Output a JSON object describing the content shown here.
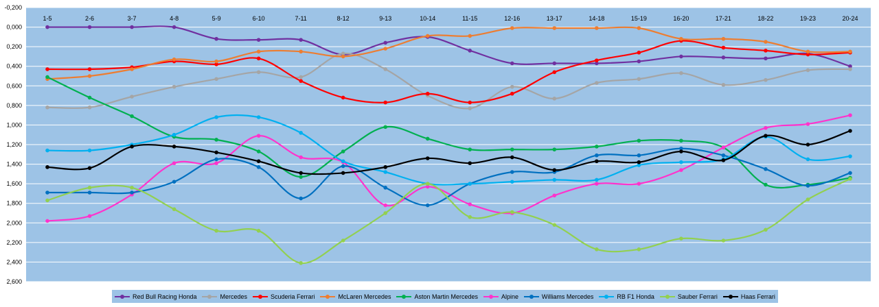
{
  "chart_data": {
    "type": "line",
    "title": "",
    "xlabel": "",
    "ylabel": "",
    "y_reversed": true,
    "ylim": [
      -0.2,
      2.6
    ],
    "y_ticks": [
      "-0,200",
      "0,000",
      "0,200",
      "0,400",
      "0,600",
      "0,800",
      "1,000",
      "1,200",
      "1,400",
      "1,600",
      "1,800",
      "2,000",
      "2,200",
      "2,400",
      "2,600"
    ],
    "x_position": "top",
    "grid": true,
    "legend_position": "bottom",
    "plot_background": "#9dc3e6",
    "categories": [
      "1-5",
      "2-6",
      "3-7",
      "4-8",
      "5-9",
      "6-10",
      "7-11",
      "8-12",
      "9-13",
      "10-14",
      "11-15",
      "12-16",
      "13-17",
      "14-18",
      "15-19",
      "16-20",
      "17-21",
      "18-22",
      "19-23",
      "20-24"
    ],
    "series": [
      {
        "name": "Red Bull Racing Honda",
        "color": "#7030a0",
        "values": [
          0.0,
          0.0,
          0.0,
          0.0,
          0.12,
          0.13,
          0.13,
          0.28,
          0.16,
          0.1,
          0.24,
          0.37,
          0.37,
          0.37,
          0.35,
          0.3,
          0.31,
          0.32,
          0.27,
          0.4
        ]
      },
      {
        "name": "Mercedes",
        "color": "#a5a5a5",
        "values": [
          0.82,
          0.82,
          0.71,
          0.61,
          0.53,
          0.46,
          0.51,
          0.27,
          0.43,
          0.7,
          0.83,
          0.61,
          0.73,
          0.57,
          0.53,
          0.47,
          0.59,
          0.54,
          0.44,
          0.43
        ]
      },
      {
        "name": "Scuderia Ferrari",
        "color": "#ff0000",
        "values": [
          0.43,
          0.43,
          0.41,
          0.35,
          0.38,
          0.32,
          0.55,
          0.72,
          0.77,
          0.68,
          0.77,
          0.68,
          0.46,
          0.34,
          0.26,
          0.14,
          0.21,
          0.24,
          0.28,
          0.26
        ]
      },
      {
        "name": "McLaren Mercedes",
        "color": "#ed7d31",
        "values": [
          0.53,
          0.5,
          0.43,
          0.33,
          0.35,
          0.25,
          0.25,
          0.3,
          0.22,
          0.09,
          0.09,
          0.01,
          0.01,
          0.01,
          0.01,
          0.12,
          0.12,
          0.15,
          0.25,
          0.25
        ]
      },
      {
        "name": "Aston Martin Mercedes",
        "color": "#00b050",
        "values": [
          0.51,
          0.72,
          0.91,
          1.12,
          1.15,
          1.27,
          1.53,
          1.27,
          1.02,
          1.14,
          1.25,
          1.25,
          1.25,
          1.22,
          1.16,
          1.16,
          1.23,
          1.61,
          1.61,
          1.54
        ]
      },
      {
        "name": "Alpine",
        "color": "#ff33cc",
        "values": [
          1.98,
          1.93,
          1.71,
          1.39,
          1.39,
          1.11,
          1.33,
          1.38,
          1.82,
          1.63,
          1.81,
          1.9,
          1.72,
          1.6,
          1.6,
          1.46,
          1.23,
          1.03,
          0.99,
          0.9
        ]
      },
      {
        "name": "Williams Mercedes",
        "color": "#0070c0",
        "values": [
          1.69,
          1.69,
          1.69,
          1.58,
          1.35,
          1.43,
          1.75,
          1.42,
          1.64,
          1.82,
          1.6,
          1.48,
          1.48,
          1.31,
          1.31,
          1.24,
          1.31,
          1.45,
          1.62,
          1.49
        ]
      },
      {
        "name": "RB F1 Honda",
        "color": "#00b0f0",
        "values": [
          1.26,
          1.26,
          1.2,
          1.1,
          0.92,
          0.92,
          1.08,
          1.37,
          1.48,
          1.6,
          1.6,
          1.58,
          1.56,
          1.56,
          1.41,
          1.38,
          1.35,
          1.12,
          1.35,
          1.32
        ]
      },
      {
        "name": "Sauber Ferrari",
        "color": "#92d050",
        "values": [
          1.77,
          1.64,
          1.64,
          1.86,
          2.08,
          2.08,
          2.41,
          2.18,
          1.9,
          1.6,
          1.94,
          1.89,
          2.02,
          2.27,
          2.27,
          2.16,
          2.18,
          2.07,
          1.76,
          1.55
        ]
      },
      {
        "name": "Haas Ferrari",
        "color": "#000000",
        "values": [
          1.43,
          1.44,
          1.22,
          1.22,
          1.28,
          1.37,
          1.49,
          1.49,
          1.43,
          1.34,
          1.39,
          1.33,
          1.46,
          1.37,
          1.38,
          1.27,
          1.36,
          1.11,
          1.2,
          1.06
        ]
      }
    ]
  }
}
